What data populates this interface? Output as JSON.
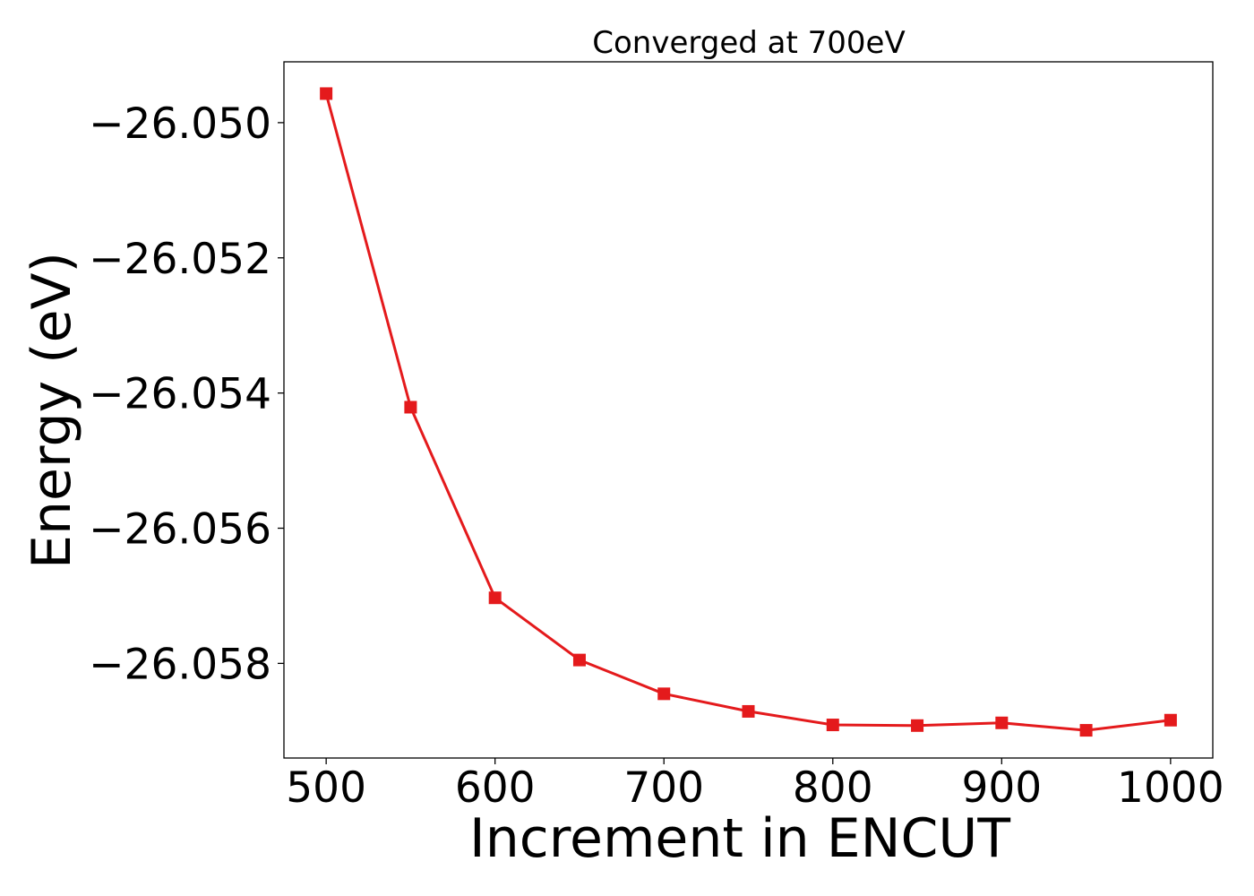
{
  "chart_data": {
    "type": "line",
    "title": "Converged at 700eV",
    "xlabel": "Increment in ENCUT",
    "ylabel": "Energy (eV)",
    "xlim": [
      475,
      1025
    ],
    "ylim": [
      -26.0594,
      -26.0491
    ],
    "xticks": [
      500,
      600,
      700,
      800,
      900,
      1000
    ],
    "xtick_labels": [
      "500",
      "600",
      "700",
      "800",
      "900",
      "1000"
    ],
    "yticks": [
      -26.05,
      -26.052,
      -26.054,
      -26.056,
      -26.058
    ],
    "ytick_labels": [
      "−26.050",
      "−26.052",
      "−26.054",
      "−26.056",
      "−26.058"
    ],
    "grid": false,
    "series": [
      {
        "color": "#e41a1c",
        "marker": "square",
        "x": [
          500,
          550,
          600,
          650,
          700,
          750,
          800,
          850,
          900,
          950,
          1000
        ],
        "y": [
          -26.04957,
          -26.05421,
          -26.05703,
          -26.05795,
          -26.05845,
          -26.05871,
          -26.05891,
          -26.05892,
          -26.05888,
          -26.05899,
          -26.05884
        ]
      }
    ]
  }
}
